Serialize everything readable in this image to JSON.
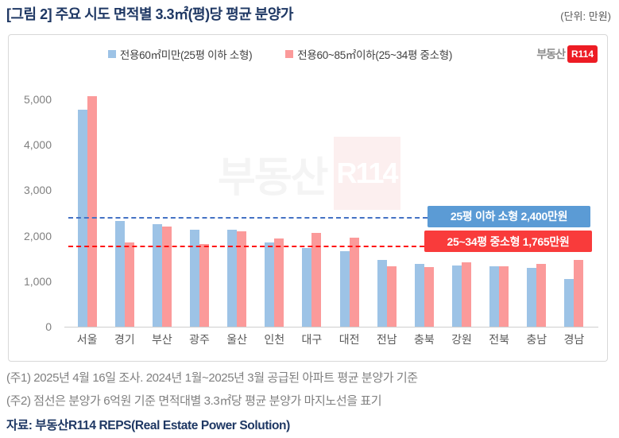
{
  "title": "[그림 2] 주요 시도 면적별 3.3㎡(평)당 평균 분양가",
  "unit_label": "(단위: 만원)",
  "legend": [
    {
      "label": "전용60㎡미만(25평 이하 소형)",
      "color": "#9DC3E6"
    },
    {
      "label": "전용60~85㎡이하(25~34평 중소형)",
      "color": "#FB9A9A"
    }
  ],
  "logo": {
    "text_left": "부동산",
    "text_right": "R114",
    "badge_color": "#ED1C24"
  },
  "watermark": {
    "text": "부동산",
    "badge": "R114",
    "badge_bg": "#FCEFEF"
  },
  "chart_data": {
    "type": "bar",
    "categories": [
      "서울",
      "경기",
      "부산",
      "광주",
      "울산",
      "인천",
      "대구",
      "대전",
      "전남",
      "충북",
      "강원",
      "전북",
      "충남",
      "경남"
    ],
    "series": [
      {
        "name": "전용60㎡미만(25평 이하 소형)",
        "color": "#9DC3E6",
        "values": [
          4770,
          2330,
          2260,
          2140,
          2140,
          1850,
          1730,
          1660,
          1460,
          1380,
          1350,
          1330,
          1290,
          1050
        ]
      },
      {
        "name": "전용60~85㎡이하(25~34평 중소형)",
        "color": "#FB9A9A",
        "values": [
          5070,
          1860,
          2200,
          1820,
          2090,
          1940,
          2070,
          1960,
          1320,
          1310,
          1420,
          1330,
          1380,
          1470
        ]
      }
    ],
    "title": "주요 시도 면적별 3.3㎡(평)당 평균 분양가",
    "xlabel": "",
    "ylabel": "만원",
    "ylim": [
      0,
      5000
    ],
    "yticks": [
      "0",
      "1,000",
      "2,000",
      "3,000",
      "4,000",
      "5,000"
    ],
    "grid": false,
    "legend_position": "top",
    "reference_lines": [
      {
        "value": 2400,
        "line_color": "#4472C4",
        "label": "25평 이하 소형 2,400만원",
        "label_bg": "#5B9BD5"
      },
      {
        "value": 1765,
        "line_color": "#FF1111",
        "label": "25~34평 중소형 1,765만원",
        "label_bg": "#F93B3B"
      }
    ]
  },
  "footnotes": [
    "(주1) 2025년 4월 16일 조사. 2024년 1월~2025년 3월 공급된 아파트 평균 분양가 기준",
    "(주2) 점선은 분양가 6억원 기준 면적대별 3.3㎡당 평균 분양가 마지노선을 표기"
  ],
  "source": "자료: 부동산R114 REPS(Real Estate Power Solution)"
}
